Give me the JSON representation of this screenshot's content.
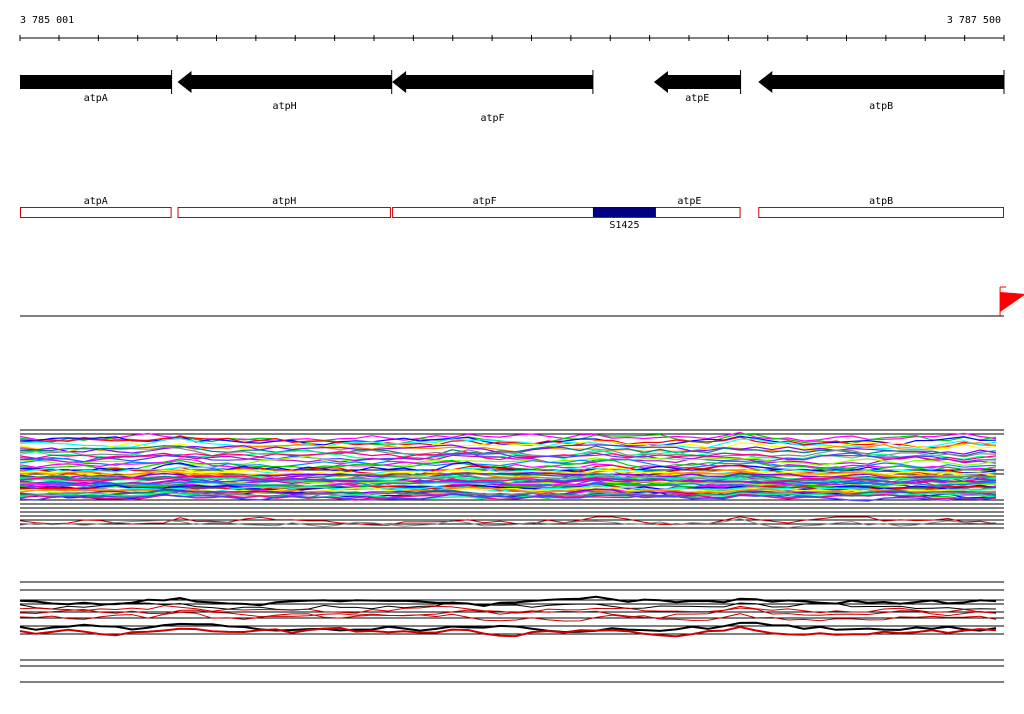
{
  "ruler": {
    "start_label": "3 785 001",
    "end_label": "3 787 500"
  },
  "colors": {
    "gene_fill": "#000000",
    "operon_outline": "#cc0000",
    "srna_fill": "#000080",
    "flag": "#ff0000",
    "axis": "#000000"
  },
  "chart_data": {
    "type": "genome-browser",
    "coordinate_range": [
      3785001,
      3787500
    ],
    "tick_step": 100,
    "genes": [
      {
        "name": "atpA",
        "start": 3785001,
        "end": 3785386,
        "strand": "-",
        "label_row": 0
      },
      {
        "name": "atpH",
        "start": 3785401,
        "end": 3785945,
        "strand": "-",
        "label_row": 1
      },
      {
        "name": "atpF",
        "start": 3785946,
        "end": 3786456,
        "strand": "-",
        "label_row": 2
      },
      {
        "name": "atpE",
        "start": 3786611,
        "end": 3786831,
        "strand": "-",
        "label_row": 0
      },
      {
        "name": "atpB",
        "start": 3786876,
        "end": 3787500,
        "strand": "-",
        "label_row": 1
      }
    ],
    "operon_boxes": [
      {
        "name": "atpA",
        "start": 3785001,
        "end": 3785386
      },
      {
        "name": "atpH",
        "start": 3785401,
        "end": 3785943
      },
      {
        "name": "atpF",
        "start": 3785946,
        "end": 3786831,
        "label_at": 3786181
      },
      {
        "name": "atpE",
        "start": 3785946,
        "end": 3786831,
        "label_at": 3786701
      },
      {
        "name": "atpB",
        "start": 3786876,
        "end": 3787500
      }
    ],
    "srna": {
      "name": "S1425",
      "start": 3786456,
      "end": 3786616
    },
    "flag_position": 3787490,
    "expression_tracks": [
      {
        "line_ids": [
          "A",
          "B",
          "C",
          "D",
          "E",
          "F",
          "G",
          "H",
          "I",
          "J",
          "K",
          "L",
          "M",
          "N",
          "O",
          "P",
          "Q",
          "R",
          "S",
          "T",
          "U",
          "V",
          "W",
          "X",
          "Y",
          "Z",
          "AA",
          "AB",
          "AC",
          "AD",
          "AE",
          "AF",
          "AG",
          "AH",
          "AI"
        ],
        "boundaries": [
          430,
          434,
          470,
          474,
          500,
          504,
          508,
          512,
          516,
          520,
          524,
          528
        ]
      },
      {
        "boundaries": [
          582,
          590,
          600,
          604,
          612,
          618,
          626,
          634,
          660,
          666,
          682
        ]
      }
    ]
  }
}
